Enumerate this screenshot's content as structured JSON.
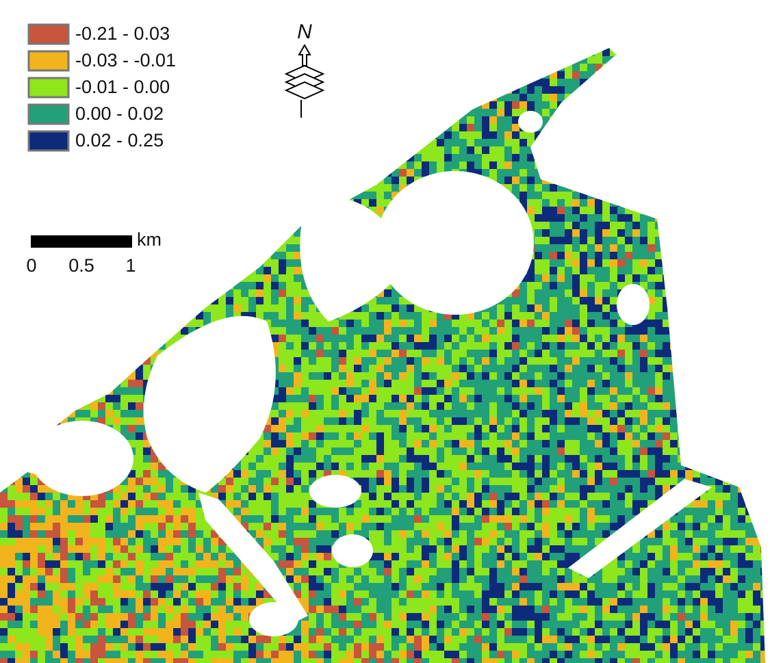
{
  "legend": {
    "items": [
      {
        "label": "-0.21 - 0.03",
        "color": "#c8553d"
      },
      {
        "label": "-0.03 - -0.01",
        "color": "#f2b41c"
      },
      {
        "label": "-0.01 - 0.00",
        "color": "#8ee61c"
      },
      {
        "label": "0.00 - 0.02",
        "color": "#21a07a"
      },
      {
        "label": "0.02 - 0.25",
        "color": "#0d2b7a"
      }
    ]
  },
  "scale_bar": {
    "unit": "km",
    "labels": [
      "0",
      "0.5",
      "1"
    ]
  },
  "north_arrow": {
    "label": "N"
  }
}
